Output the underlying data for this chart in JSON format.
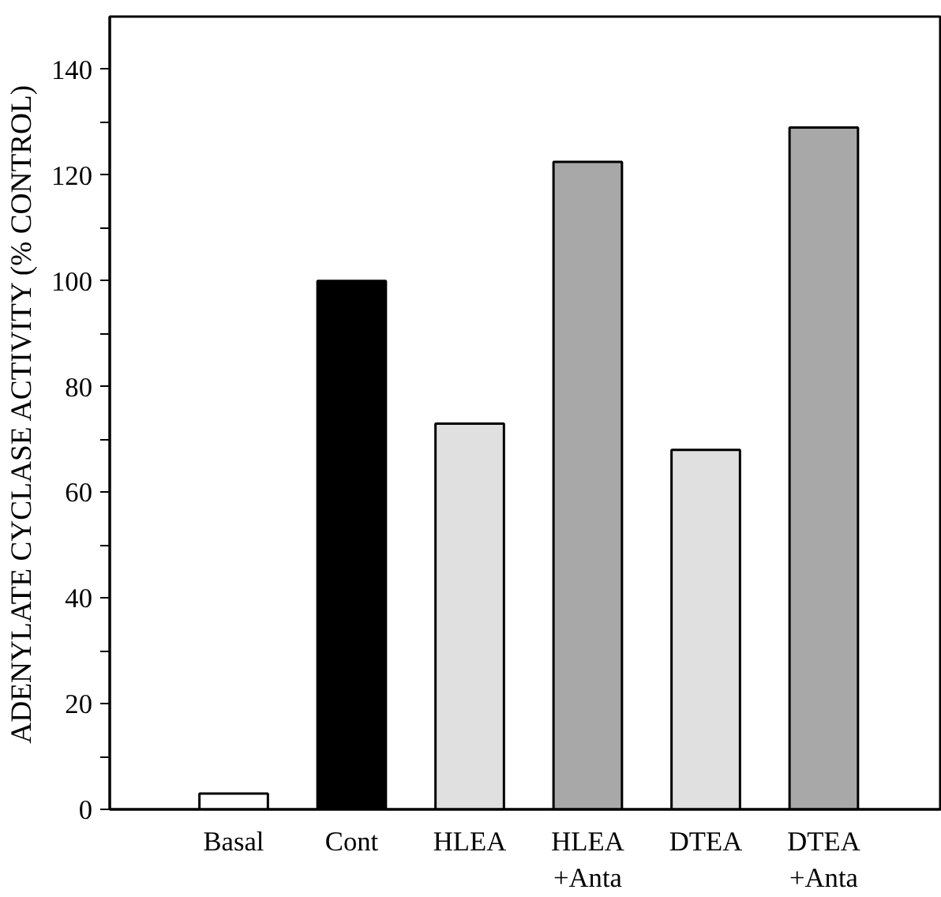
{
  "chart_data": {
    "type": "bar",
    "ylabel": "ADENYLATE CYCLASE ACTIVITY (% CONTROL)",
    "categories": [
      "Basal",
      "Cont",
      "HLEA",
      "HLEA\n+Anta",
      "DTEA",
      "DTEA\n+Anta"
    ],
    "values": [
      3,
      100,
      73,
      122.5,
      68,
      129
    ],
    "colors": [
      "#ffffff",
      "#000000",
      "#e0e0e0",
      "#a8a8a8",
      "#e0e0e0",
      "#a8a8a8"
    ],
    "ylim": [
      0,
      150
    ],
    "yticks": [
      0,
      {
        "value": 10,
        "label": null
      },
      20,
      {
        "value": 30,
        "label": null
      },
      40,
      {
        "value": 50,
        "label": null
      },
      60,
      {
        "value": 70,
        "label": null
      },
      80,
      {
        "value": 90,
        "label": null
      },
      100,
      {
        "value": 110,
        "label": null
      },
      120,
      {
        "value": 130,
        "label": null
      },
      140
    ],
    "grid": false
  }
}
